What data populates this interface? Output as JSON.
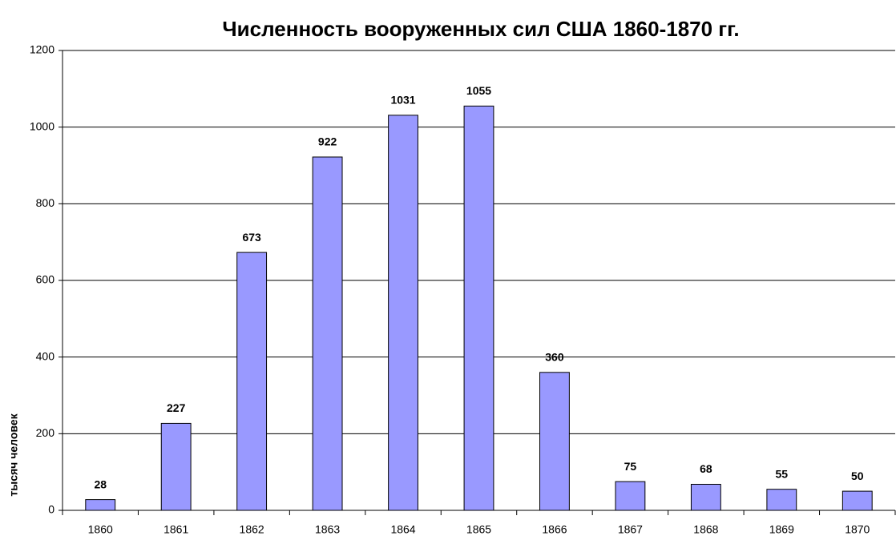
{
  "chart_data": {
    "type": "bar",
    "title": "Численность вооруженных сил США 1860-1870 гг.",
    "y_label": "тысяч человек",
    "categories": [
      "1860",
      "1861",
      "1862",
      "1863",
      "1864",
      "1865",
      "1866",
      "1867",
      "1868",
      "1869",
      "1870"
    ],
    "values": [
      28,
      227,
      673,
      922,
      1031,
      1055,
      360,
      75,
      68,
      55,
      50
    ],
    "color": "#9999ff",
    "ylim": [
      0,
      1200
    ],
    "yticks": [
      0,
      200,
      400,
      600,
      800,
      1000,
      1200
    ],
    "grid": true
  }
}
